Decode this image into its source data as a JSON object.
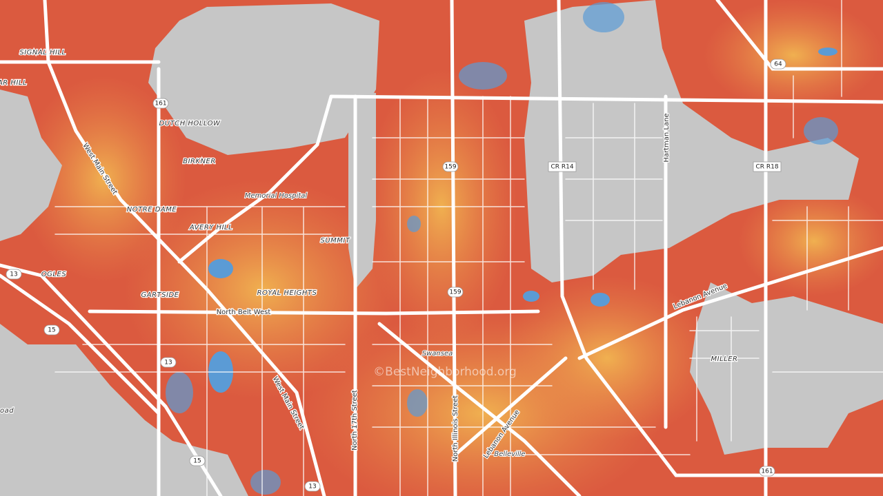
{
  "places": [
    "SIGNAL HILL",
    "AR HILL",
    "DUTCH HOLLOW",
    "BIRKNER",
    "NOTRE DAME",
    "AVERY HILL",
    "SUMMIT",
    "ROYAL HEIGHTS",
    "GARTSIDE",
    "OGLES",
    "MILLER",
    "oad"
  ],
  "landmarks": [
    "Memorial Hospital",
    "Swansea",
    "Belleville"
  ],
  "roads": [
    "North Belt West",
    "West Main Street",
    "West Main Street",
    "North 17th Street",
    "North Illinois Street",
    "Lebanon Avenue",
    "Lebanon Avenue",
    "Hartman Lane"
  ],
  "shields": [
    "161",
    "159",
    "159",
    "13",
    "15",
    "13",
    "15",
    "13",
    "161",
    "64"
  ],
  "county_roads": [
    "CR R14",
    "CR R18"
  ],
  "watermark": "©BestNeighborhood.org"
}
